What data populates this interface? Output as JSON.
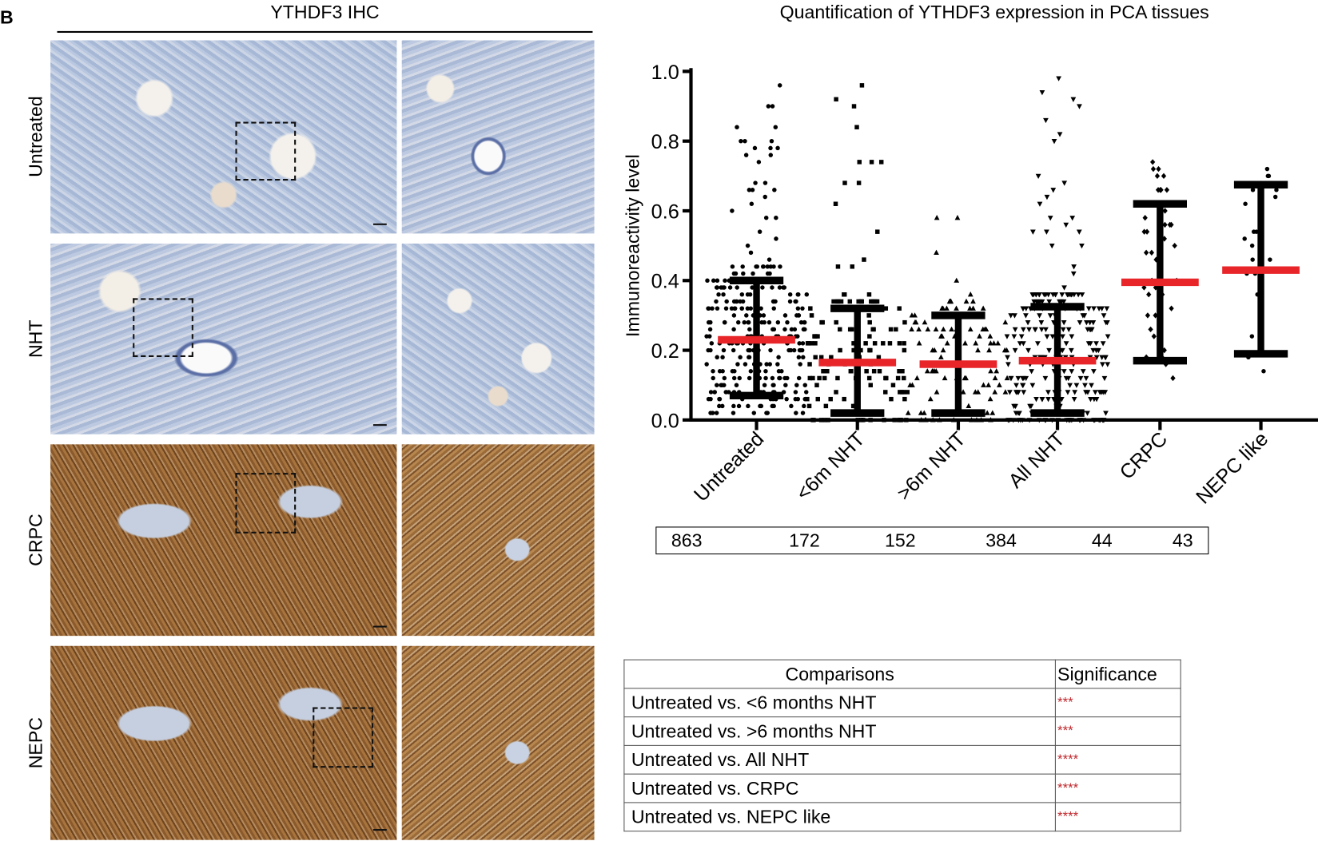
{
  "panel_letter": "B",
  "ihc": {
    "title": "YTHDF3 IHC",
    "rows": [
      {
        "label": "Untreated",
        "stain": "blue"
      },
      {
        "label": "NHT",
        "stain": "blue"
      },
      {
        "label": "CRPC",
        "stain": "brown"
      },
      {
        "label": "NEPC",
        "stain": "brown"
      }
    ]
  },
  "chart_data": {
    "type": "scatter",
    "title": "Quantification of YTHDF3 expression in PCA tissues",
    "xlabel": "",
    "ylabel": "Immunoreactivity level",
    "ylim": [
      0,
      1.0
    ],
    "yticks": [
      "0.0",
      "0.2",
      "0.4",
      "0.6",
      "0.8",
      "1.0"
    ],
    "categories": [
      "Untreated",
      "<6m NHT",
      ">6m NHT",
      "All NHT",
      "CRPC",
      "NEPC like"
    ],
    "markers": [
      "circle",
      "square",
      "triangle-up",
      "triangle-down",
      "diamond",
      "circle"
    ],
    "mean": [
      0.23,
      0.165,
      0.16,
      0.17,
      0.395,
      0.43
    ],
    "sd_low": [
      0.07,
      0.02,
      0.02,
      0.02,
      0.17,
      0.19
    ],
    "sd_high": [
      0.4,
      0.32,
      0.3,
      0.325,
      0.62,
      0.675
    ],
    "max": [
      1.0,
      1.0,
      0.62,
      1.0,
      0.81,
      0.82
    ],
    "min": [
      0.0,
      0.0,
      0.0,
      0.0,
      0.05,
      0.02
    ],
    "n": [
      "863",
      "172",
      "152",
      "384",
      "44",
      "43"
    ],
    "mean_color": "#e8262a",
    "point_color": "#000000",
    "grid": false
  },
  "comparisons": {
    "headers": [
      "Comparisons",
      "Significance"
    ],
    "rows": [
      {
        "comparison": "Untreated vs. <6 months NHT",
        "significance": "***"
      },
      {
        "comparison": "Untreated vs. >6 months NHT",
        "significance": "***"
      },
      {
        "comparison": "Untreated vs. All NHT",
        "significance": "****"
      },
      {
        "comparison": "Untreated vs. CRPC",
        "significance": "****"
      },
      {
        "comparison": "Untreated vs. NEPC like",
        "significance": "****"
      }
    ],
    "significance_color": "#c0282d"
  }
}
